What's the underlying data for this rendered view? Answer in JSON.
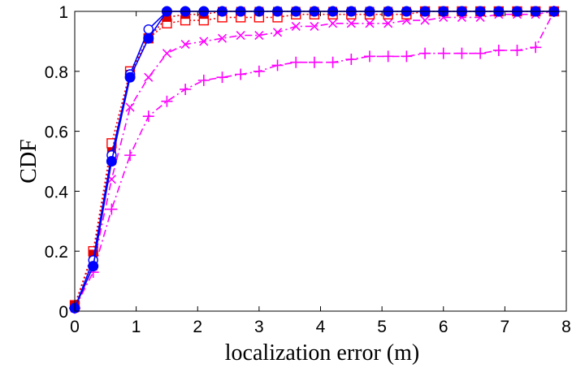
{
  "chart_data": {
    "type": "line",
    "title": "",
    "xlabel": "localization error (m)",
    "ylabel": "CDF",
    "xlim": [
      0,
      8
    ],
    "ylim": [
      0,
      1
    ],
    "xticks": [
      "0",
      "1",
      "2",
      "3",
      "4",
      "5",
      "6",
      "7",
      "8"
    ],
    "yticks": [
      "0",
      "0.2",
      "0.4",
      "0.6",
      "0.8",
      "1"
    ],
    "grid": false,
    "legend": "none",
    "x": [
      0,
      0.3,
      0.6,
      0.9,
      1.2,
      1.5,
      1.8,
      2.1,
      2.4,
      2.7,
      3.0,
      3.3,
      3.6,
      3.9,
      4.2,
      4.5,
      4.8,
      5.1,
      5.4,
      5.7,
      6.0,
      6.3,
      6.6,
      6.9,
      7.2,
      7.5,
      7.8
    ],
    "series": [
      {
        "color": "#ff00ff",
        "marker": "plus",
        "dash": "9,4,2,4",
        "values": [
          0.01,
          0.13,
          0.34,
          0.52,
          0.65,
          0.7,
          0.74,
          0.77,
          0.78,
          0.79,
          0.8,
          0.82,
          0.83,
          0.83,
          0.83,
          0.84,
          0.85,
          0.85,
          0.85,
          0.86,
          0.86,
          0.86,
          0.86,
          0.87,
          0.87,
          0.88,
          1.0
        ]
      },
      {
        "color": "#ff00ff",
        "marker": "cross",
        "dash": "9,4,2,4",
        "values": [
          0.01,
          0.15,
          0.44,
          0.68,
          0.78,
          0.86,
          0.89,
          0.9,
          0.91,
          0.92,
          0.92,
          0.93,
          0.95,
          0.95,
          0.96,
          0.96,
          0.96,
          0.96,
          0.97,
          0.97,
          0.98,
          0.98,
          0.98,
          0.99,
          0.99,
          0.99,
          1.0
        ]
      },
      {
        "color": "#ff0000",
        "marker": "square-open",
        "dash": "2,3",
        "values": [
          0.02,
          0.2,
          0.56,
          0.8,
          0.91,
          0.96,
          0.97,
          0.97,
          0.98,
          0.98,
          0.98,
          0.98,
          0.99,
          0.99,
          0.99,
          0.99,
          0.99,
          0.99,
          0.99,
          1.0,
          1.0,
          1.0,
          1.0,
          1.0,
          1.0,
          1.0,
          1.0
        ]
      },
      {
        "color": "#dd0000",
        "marker": "square-filled",
        "dash": "2,3",
        "values": [
          0.02,
          0.19,
          0.53,
          0.79,
          0.91,
          0.98,
          0.99,
          0.99,
          1.0,
          1.0,
          1.0,
          1.0,
          1.0,
          1.0,
          1.0,
          1.0,
          1.0,
          1.0,
          1.0,
          1.0,
          1.0,
          1.0,
          1.0,
          1.0,
          1.0,
          1.0,
          1.0
        ]
      },
      {
        "color": "#0000ff",
        "marker": "circle-open",
        "dash": "",
        "values": [
          0.01,
          0.17,
          0.52,
          0.79,
          0.94,
          1.0,
          1.0,
          1.0,
          1.0,
          1.0,
          1.0,
          1.0,
          1.0,
          1.0,
          1.0,
          1.0,
          1.0,
          1.0,
          1.0,
          1.0,
          1.0,
          1.0,
          1.0,
          1.0,
          1.0,
          1.0,
          1.0
        ]
      },
      {
        "color": "#0000ff",
        "marker": "circle-filled",
        "dash": "",
        "values": [
          0.01,
          0.15,
          0.5,
          0.78,
          0.91,
          1.0,
          1.0,
          1.0,
          1.0,
          1.0,
          1.0,
          1.0,
          1.0,
          1.0,
          1.0,
          1.0,
          1.0,
          1.0,
          1.0,
          1.0,
          1.0,
          1.0,
          1.0,
          1.0,
          1.0,
          1.0,
          1.0
        ]
      }
    ]
  }
}
